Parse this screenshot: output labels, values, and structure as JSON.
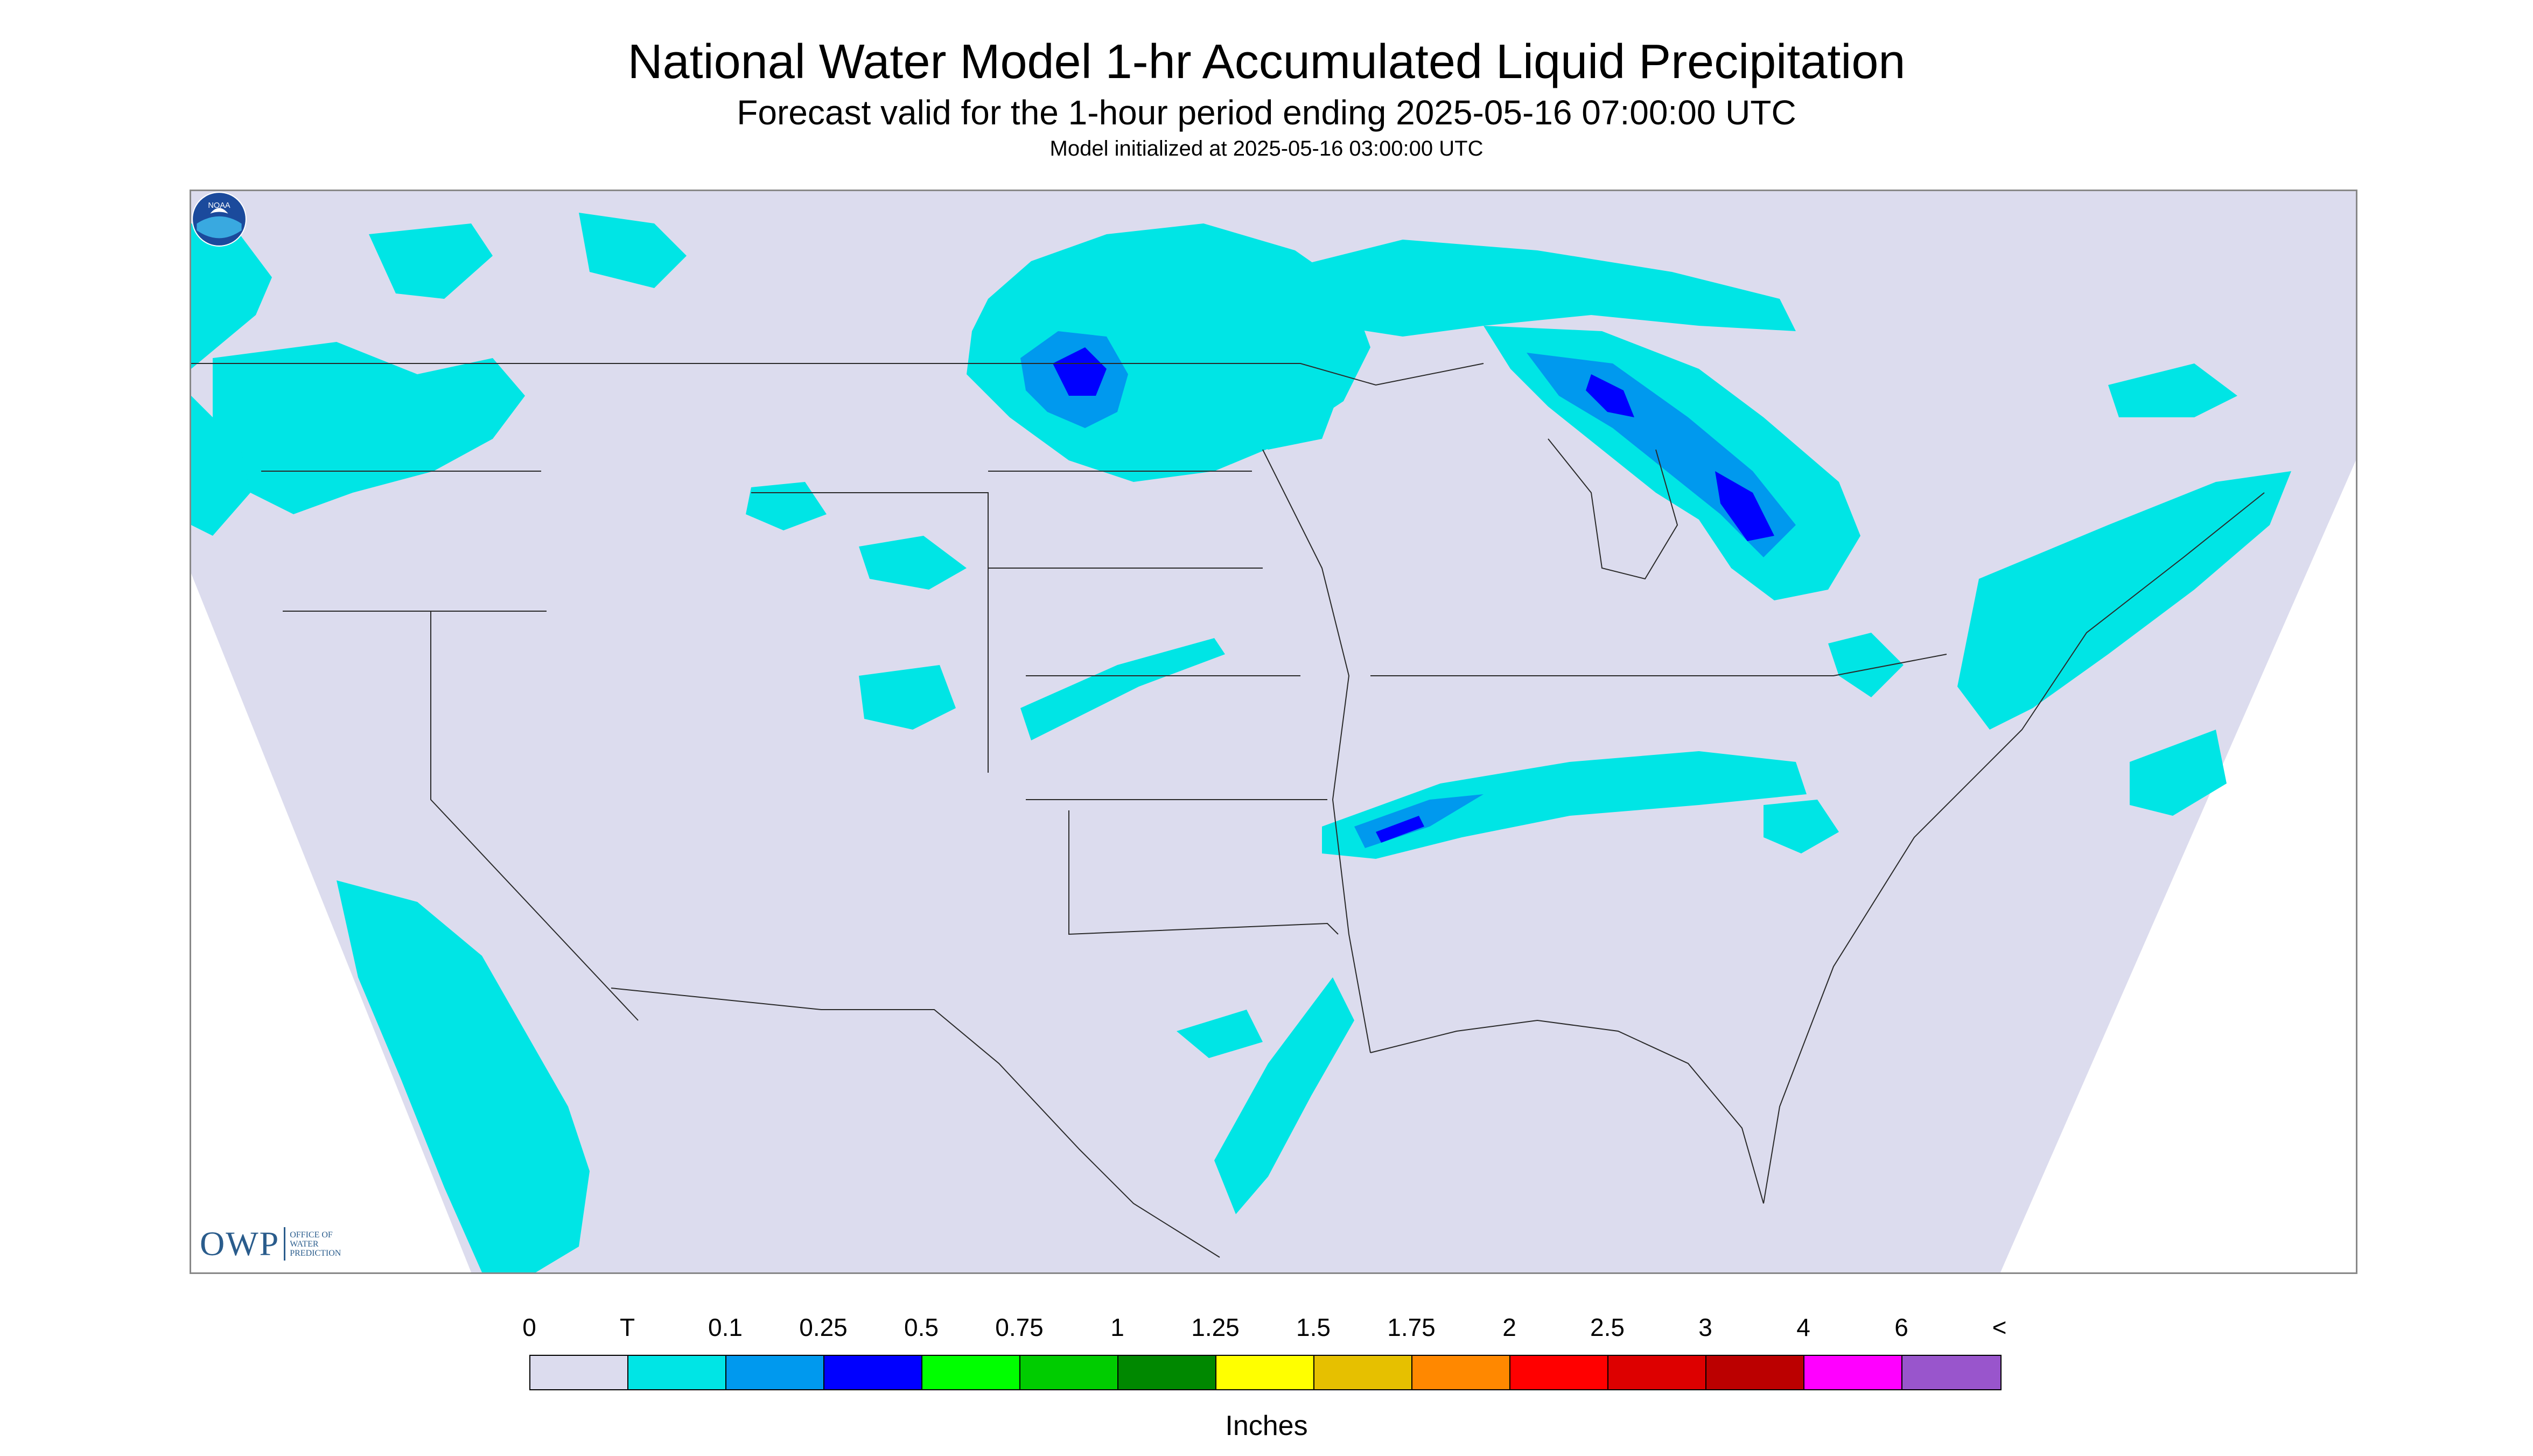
{
  "header": {
    "title": "National Water Model 1-hr Accumulated Liquid Precipitation",
    "subtitle": "Forecast valid for the 1-hour period ending 2025-05-16 07:00:00 UTC",
    "init_text": "Model initialized at 2025-05-16 03:00:00 UTC"
  },
  "map": {
    "region": "CONUS",
    "background_color": "#dcdcee",
    "outside_color": "#ffffff",
    "border_color": "#2a2a2a"
  },
  "logos": {
    "owp": {
      "text": "OWP",
      "subtext": "OFFICE OF WATER PREDICTION",
      "icon": "owp-logo"
    },
    "noaa": {
      "text": "NOAA",
      "icon": "noaa-logo"
    }
  },
  "legend": {
    "labels": [
      "0",
      "T",
      "0.1",
      "0.25",
      "0.5",
      "0.75",
      "1",
      "1.25",
      "1.5",
      "1.75",
      "2",
      "2.5",
      "3",
      "4",
      "6",
      "<"
    ],
    "colors": [
      "#dcdcee",
      "#00e5e5",
      "#0099ee",
      "#0000ff",
      "#00ff00",
      "#00cc00",
      "#008800",
      "#ffff00",
      "#e6c000",
      "#ff8800",
      "#ff0000",
      "#dd0000",
      "#bb0000",
      "#ff00ff",
      "#9955cc"
    ],
    "units": "Inches"
  }
}
